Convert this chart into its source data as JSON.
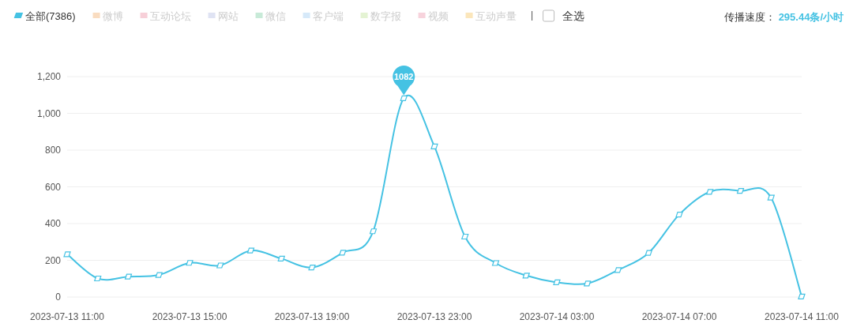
{
  "chart_data": {
    "type": "line",
    "x": [
      "2023-07-13T11:00",
      "2023-07-13T12:00",
      "2023-07-13T13:00",
      "2023-07-13T14:00",
      "2023-07-13T15:00",
      "2023-07-13T16:00",
      "2023-07-13T17:00",
      "2023-07-13T18:00",
      "2023-07-13T19:00",
      "2023-07-13T20:00",
      "2023-07-13T21:00",
      "2023-07-13T22:00",
      "2023-07-13T23:00",
      "2023-07-14T00:00",
      "2023-07-14T01:00",
      "2023-07-14T02:00",
      "2023-07-14T03:00",
      "2023-07-14T04:00",
      "2023-07-14T05:00",
      "2023-07-14T06:00",
      "2023-07-14T07:00",
      "2023-07-14T08:00",
      "2023-07-14T09:00",
      "2023-07-14T10:00",
      "2023-07-14T11:00"
    ],
    "series": [
      {
        "name": "全部(7386)",
        "color": "#45c2e3",
        "values": [
          233,
          101,
          111,
          120,
          186,
          172,
          253,
          209,
          161,
          241,
          358,
          1082,
          820,
          329,
          185,
          117,
          80,
          74,
          147,
          240,
          449,
          573,
          578,
          541,
          3
        ]
      },
      {
        "name": "微博",
        "color": "#f9dcc0",
        "values": [
          null,
          null,
          null,
          null,
          null,
          null,
          null,
          null,
          null,
          null,
          null,
          null,
          null,
          null,
          null,
          null,
          null,
          null,
          null,
          null,
          null,
          null,
          null,
          null,
          null
        ]
      },
      {
        "name": "互动论坛",
        "color": "#f7cfd8",
        "values": [
          null,
          null,
          null,
          null,
          null,
          null,
          null,
          null,
          null,
          null,
          null,
          null,
          null,
          null,
          null,
          null,
          null,
          null,
          null,
          null,
          null,
          null,
          null,
          null,
          null
        ]
      },
      {
        "name": "网站",
        "color": "#dfe3f3",
        "values": [
          null,
          null,
          null,
          null,
          null,
          null,
          null,
          null,
          null,
          null,
          null,
          null,
          null,
          null,
          null,
          null,
          null,
          null,
          null,
          null,
          null,
          null,
          null,
          null,
          null
        ]
      },
      {
        "name": "微信",
        "color": "#c8ead8",
        "values": [
          null,
          null,
          null,
          null,
          null,
          null,
          null,
          null,
          null,
          null,
          null,
          null,
          null,
          null,
          null,
          null,
          null,
          null,
          null,
          null,
          null,
          null,
          null,
          null,
          null
        ]
      },
      {
        "name": "客户端",
        "color": "#d6e9f9",
        "values": [
          null,
          null,
          null,
          null,
          null,
          null,
          null,
          null,
          null,
          null,
          null,
          null,
          null,
          null,
          null,
          null,
          null,
          null,
          null,
          null,
          null,
          null,
          null,
          null,
          null
        ]
      },
      {
        "name": "数字报",
        "color": "#e4f3d3",
        "values": [
          null,
          null,
          null,
          null,
          null,
          null,
          null,
          null,
          null,
          null,
          null,
          null,
          null,
          null,
          null,
          null,
          null,
          null,
          null,
          null,
          null,
          null,
          null,
          null,
          null
        ]
      },
      {
        "name": "视频",
        "color": "#f7d3dc",
        "values": [
          null,
          null,
          null,
          null,
          null,
          null,
          null,
          null,
          null,
          null,
          null,
          null,
          null,
          null,
          null,
          null,
          null,
          null,
          null,
          null,
          null,
          null,
          null,
          null,
          null
        ]
      },
      {
        "name": "互动声量",
        "color": "#fbe6bb",
        "values": [
          null,
          null,
          null,
          null,
          null,
          null,
          null,
          null,
          null,
          null,
          null,
          null,
          null,
          null,
          null,
          null,
          null,
          null,
          null,
          null,
          null,
          null,
          null,
          null,
          null
        ]
      }
    ],
    "xlim": [
      "2023-07-13T11:00",
      "2023-07-14T11:00"
    ],
    "xticks": [
      {
        "value": "2023-07-13T11:00",
        "label": "2023-07-13 11:00"
      },
      {
        "value": "2023-07-13T15:00",
        "label": "2023-07-13 15:00"
      },
      {
        "value": "2023-07-13T19:00",
        "label": "2023-07-13 19:00"
      },
      {
        "value": "2023-07-13T23:00",
        "label": "2023-07-13 23:00"
      },
      {
        "value": "2023-07-14T03:00",
        "label": "2023-07-14 03:00"
      },
      {
        "value": "2023-07-14T07:00",
        "label": "2023-07-14 07:00"
      },
      {
        "value": "2023-07-14T11:00",
        "label": "2023-07-14 11:00"
      }
    ],
    "ylim": [
      0,
      1200
    ],
    "yticks": [
      {
        "value": 0,
        "label": "0"
      },
      {
        "value": 200,
        "label": "200"
      },
      {
        "value": 400,
        "label": "400"
      },
      {
        "value": 600,
        "label": "600"
      },
      {
        "value": 800,
        "label": "800"
      },
      {
        "value": 1000,
        "label": "1,000"
      },
      {
        "value": 1200,
        "label": "1,200"
      }
    ],
    "grid": "y",
    "legend": "top left",
    "marker": "diamond",
    "line_style": "solid",
    "annotations": [
      {
        "text": "1082",
        "x": "2023-07-13T22:00",
        "y": 1082
      },
      "全选",
      "传播速度：",
      "295.44条/小时"
    ]
  }
}
